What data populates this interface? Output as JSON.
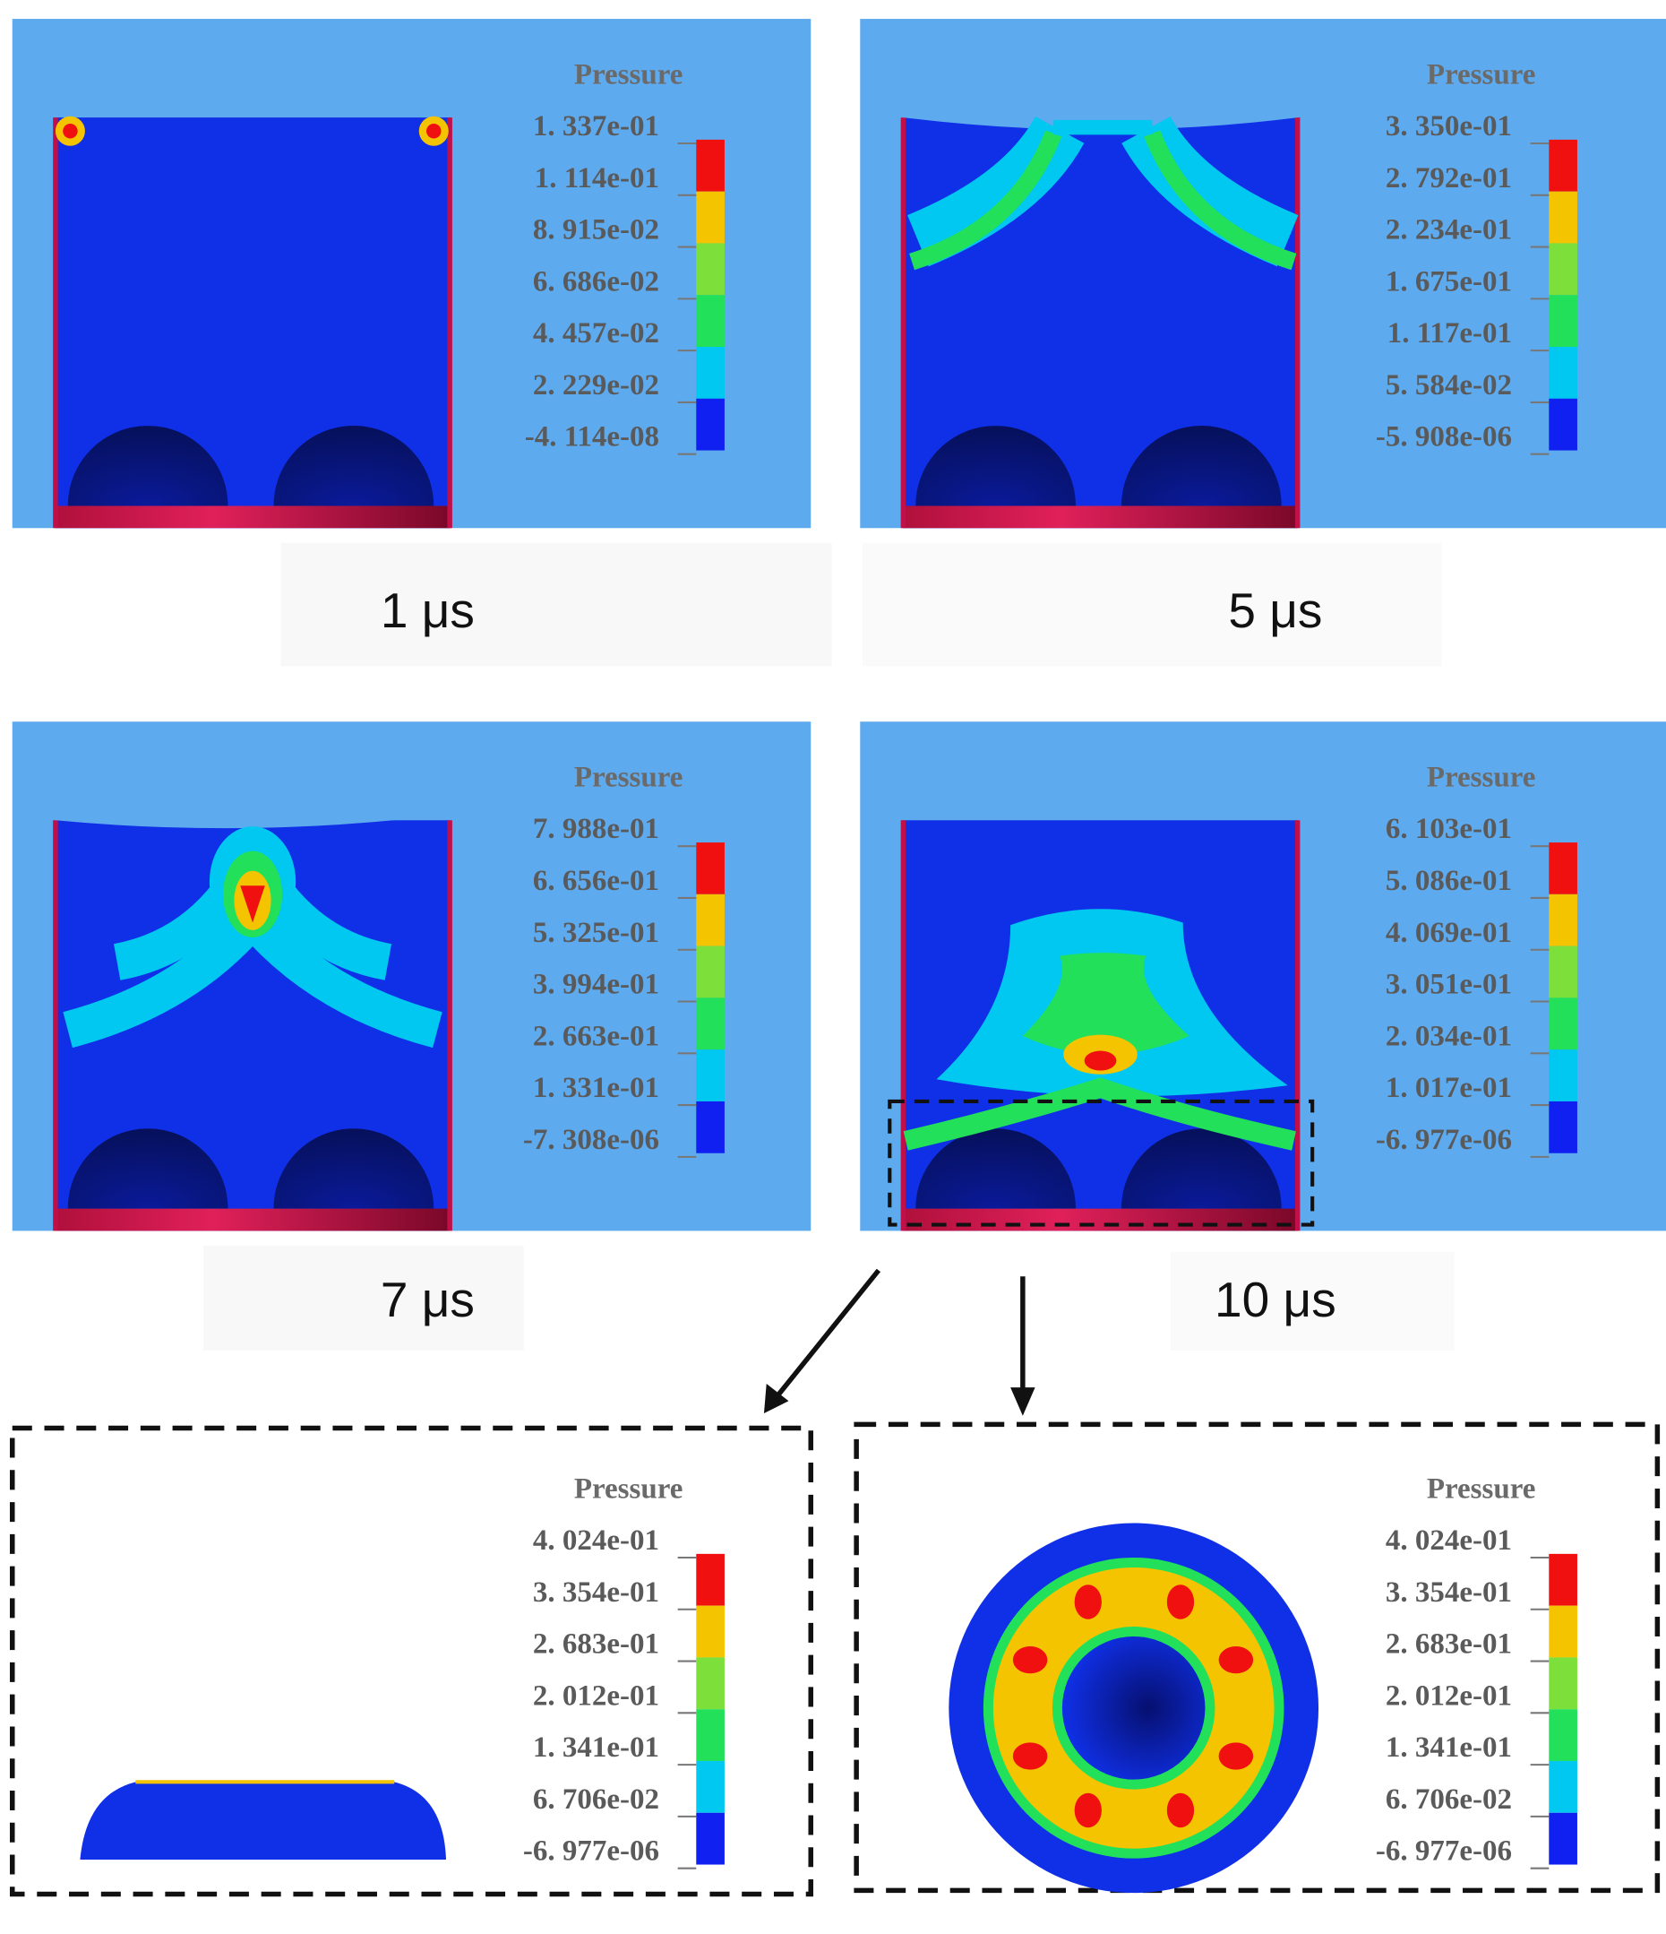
{
  "panels": [
    {
      "legend_title": "Pressure",
      "legend_labels": [
        "1. 337e-01",
        "1. 114e-01",
        "8. 915e-02",
        "6. 686e-02",
        "4. 457e-02",
        "2. 229e-02",
        "-4. 114e-08"
      ],
      "caption": "1 μs"
    },
    {
      "legend_title": "Pressure",
      "legend_labels": [
        "3. 350e-01",
        "2. 792e-01",
        "2. 234e-01",
        "1. 675e-01",
        "1. 117e-01",
        "5. 584e-02",
        "-5. 908e-06"
      ],
      "caption": "5 μs"
    },
    {
      "legend_title": "Pressure",
      "legend_labels": [
        "7. 988e-01",
        "6. 656e-01",
        "5. 325e-01",
        "3. 994e-01",
        "2. 663e-01",
        "1. 331e-01",
        "-7. 308e-06"
      ],
      "caption": "7 μs"
    },
    {
      "legend_title": "Pressure",
      "legend_labels": [
        "6. 103e-01",
        "5. 086e-01",
        "4. 069e-01",
        "3. 051e-01",
        "2. 034e-01",
        "1. 017e-01",
        "-6. 977e-06"
      ],
      "caption": "10 μs"
    },
    {
      "legend_title": "Pressure",
      "legend_labels": [
        "4. 024e-01",
        "3. 354e-01",
        "2. 683e-01",
        "2. 012e-01",
        "1. 341e-01",
        "6. 706e-02",
        "-6. 977e-06"
      ]
    },
    {
      "legend_title": "Pressure",
      "legend_labels": [
        "4. 024e-01",
        "3. 354e-01",
        "2. 683e-01",
        "2. 012e-01",
        "1. 341e-01",
        "6. 706e-02",
        "-6. 977e-06"
      ]
    }
  ]
}
